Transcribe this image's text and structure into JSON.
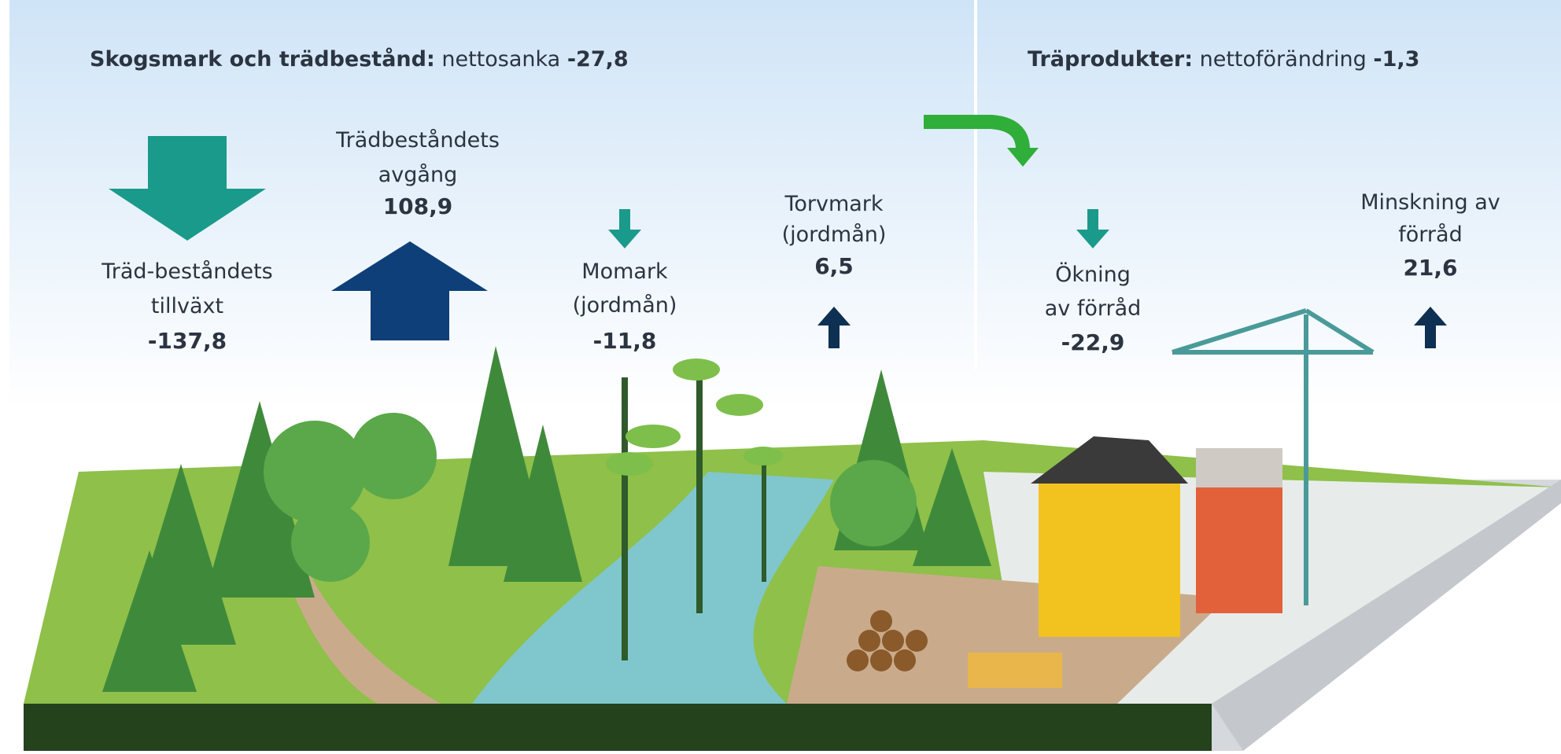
{
  "panels": [
    {
      "title": "Skogsmark och trädbestånd:",
      "subtitle": "nettosanka",
      "value": "-27,8"
    },
    {
      "title": "Träprodukter:",
      "subtitle": "nettoförändring",
      "value": "-1,3"
    }
  ],
  "items": [
    {
      "lines": [
        "Träd-beståndets",
        "tillväxt"
      ],
      "value": "-137,8"
    },
    {
      "lines": [
        "Trädbeståndets",
        "avgång"
      ],
      "value": "108,9"
    },
    {
      "lines": [
        "Momark",
        "(jordmån)"
      ],
      "value": "-11,8"
    },
    {
      "lines": [
        "Torvmark",
        "(jordmån)"
      ],
      "value": "6,5"
    },
    {
      "lines": [
        "Ökning",
        "av förråd"
      ],
      "value": "-22,9"
    },
    {
      "lines": [
        "Minskning av",
        "förråd"
      ],
      "value": "21,6"
    }
  ]
}
